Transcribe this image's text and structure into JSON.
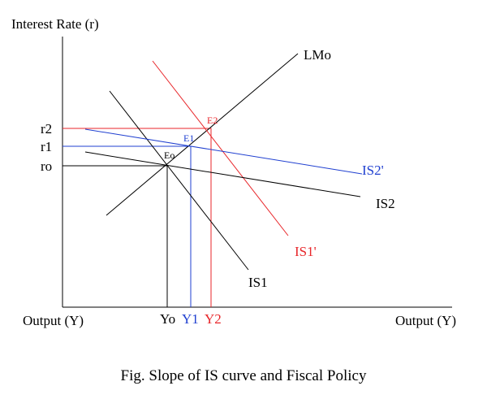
{
  "axes": {
    "y_label": "Interest Rate (r)",
    "x_label_left": "Output (Y)",
    "x_label_right": "Output (Y)"
  },
  "rate_levels": [
    "r2",
    "r1",
    "ro"
  ],
  "output_levels": [
    "Yo",
    "Y1",
    "Y2"
  ],
  "curves": [
    "LMo",
    "IS2'",
    "IS2",
    "IS1'",
    "IS1"
  ],
  "equilibria": [
    "E2",
    "E1",
    "Eo"
  ],
  "caption": "Fig. Slope of IS curve and Fiscal Policy"
}
